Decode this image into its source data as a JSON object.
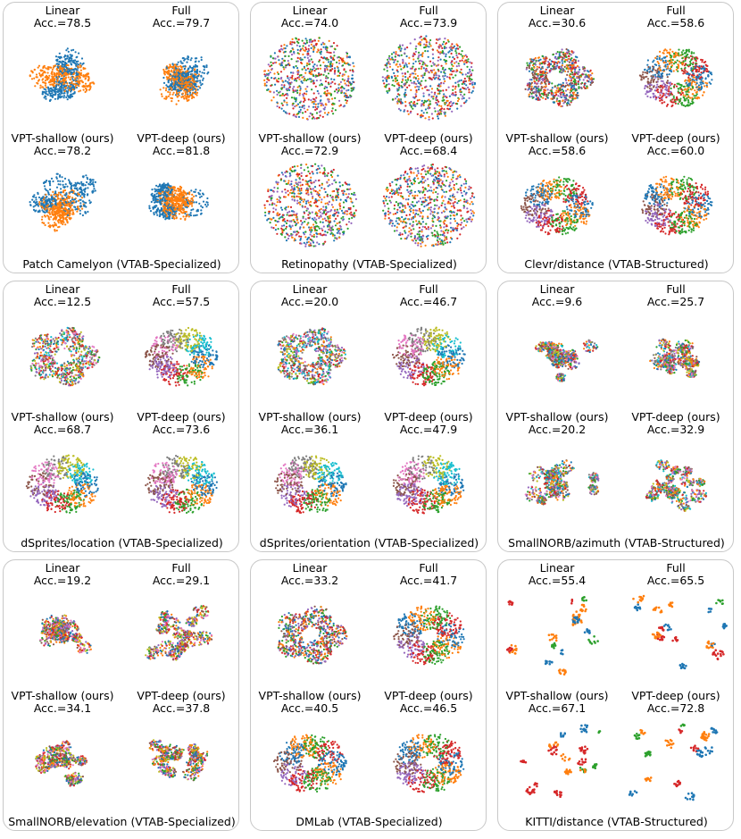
{
  "chart_data": [
    {
      "type": "scatter",
      "title": "Patch Camelyon (VTAB-Specialized)",
      "subplots": [
        {
          "method": "Linear",
          "accuracy": "Acc.=78.5"
        },
        {
          "method": "Full",
          "accuracy": "Acc.=79.7"
        },
        {
          "method": "VPT-shallow (ours)",
          "accuracy": "Acc.=78.2"
        },
        {
          "method": "VPT-deep (ours)",
          "accuracy": "Acc.=81.8"
        }
      ],
      "palette": [
        "#1f77b4",
        "#ff7f0e"
      ]
    },
    {
      "type": "scatter",
      "title": "Retinopathy (VTAB-Specialized)",
      "subplots": [
        {
          "method": "Linear",
          "accuracy": "Acc.=74.0"
        },
        {
          "method": "Full",
          "accuracy": "Acc.=73.9"
        },
        {
          "method": "VPT-shallow (ours)",
          "accuracy": "Acc.=72.9"
        },
        {
          "method": "VPT-deep (ours)",
          "accuracy": "Acc.=68.4"
        }
      ],
      "palette": [
        "#1f77b4",
        "#2ca02c",
        "#ff7f0e",
        "#d62728",
        "#9467bd"
      ]
    },
    {
      "type": "scatter",
      "title": "Clevr/distance (VTAB-Structured)",
      "subplots": [
        {
          "method": "Linear",
          "accuracy": "Acc.=30.6"
        },
        {
          "method": "Full",
          "accuracy": "Acc.=58.6"
        },
        {
          "method": "VPT-shallow (ours)",
          "accuracy": "Acc.=58.6"
        },
        {
          "method": "VPT-deep (ours)",
          "accuracy": "Acc.=60.0"
        }
      ],
      "palette": [
        "#1f77b4",
        "#ff7f0e",
        "#2ca02c",
        "#d62728",
        "#9467bd",
        "#8c564b"
      ]
    },
    {
      "type": "scatter",
      "title": "dSprites/location (VTAB-Specialized)",
      "subplots": [
        {
          "method": "Linear",
          "accuracy": "Acc.=12.5"
        },
        {
          "method": "Full",
          "accuracy": "Acc.=57.5"
        },
        {
          "method": "VPT-shallow (ours)",
          "accuracy": "Acc.=68.7"
        },
        {
          "method": "VPT-deep (ours)",
          "accuracy": "Acc.=73.6"
        }
      ],
      "palette": [
        "#1f77b4",
        "#ff7f0e",
        "#2ca02c",
        "#d62728",
        "#9467bd",
        "#8c564b",
        "#e377c2",
        "#7f7f7f",
        "#bcbd22",
        "#17becf"
      ]
    },
    {
      "type": "scatter",
      "title": "dSprites/orientation (VTAB-Specialized)",
      "subplots": [
        {
          "method": "Linear",
          "accuracy": "Acc.=20.0"
        },
        {
          "method": "Full",
          "accuracy": "Acc.=46.7"
        },
        {
          "method": "VPT-shallow (ours)",
          "accuracy": "Acc.=36.1"
        },
        {
          "method": "VPT-deep (ours)",
          "accuracy": "Acc.=47.9"
        }
      ],
      "palette": [
        "#1f77b4",
        "#ff7f0e",
        "#2ca02c",
        "#d62728",
        "#9467bd",
        "#8c564b",
        "#e377c2",
        "#7f7f7f",
        "#bcbd22",
        "#17becf"
      ]
    },
    {
      "type": "scatter",
      "title": "SmallNORB/azimuth (VTAB-Structured)",
      "subplots": [
        {
          "method": "Linear",
          "accuracy": "Acc.=9.6"
        },
        {
          "method": "Full",
          "accuracy": "Acc.=25.7"
        },
        {
          "method": "VPT-shallow (ours)",
          "accuracy": "Acc.=20.2"
        },
        {
          "method": "VPT-deep (ours)",
          "accuracy": "Acc.=32.9"
        }
      ],
      "palette": [
        "#1f77b4",
        "#ff7f0e",
        "#2ca02c",
        "#d62728",
        "#9467bd",
        "#8c564b",
        "#e377c2",
        "#7f7f7f",
        "#bcbd22",
        "#17becf"
      ]
    },
    {
      "type": "scatter",
      "title": "SmallNORB/elevation (VTAB-Specialized)",
      "subplots": [
        {
          "method": "Linear",
          "accuracy": "Acc.=19.2"
        },
        {
          "method": "Full",
          "accuracy": "Acc.=29.1"
        },
        {
          "method": "VPT-shallow (ours)",
          "accuracy": "Acc.=34.1"
        },
        {
          "method": "VPT-deep (ours)",
          "accuracy": "Acc.=37.8"
        }
      ],
      "palette": [
        "#1f77b4",
        "#ff7f0e",
        "#2ca02c",
        "#d62728",
        "#9467bd",
        "#8c564b",
        "#e377c2",
        "#bcbd22"
      ]
    },
    {
      "type": "scatter",
      "title": "DMLab (VTAB-Specialized)",
      "subplots": [
        {
          "method": "Linear",
          "accuracy": "Acc.=33.2"
        },
        {
          "method": "Full",
          "accuracy": "Acc.=41.7"
        },
        {
          "method": "VPT-shallow (ours)",
          "accuracy": "Acc.=40.5"
        },
        {
          "method": "VPT-deep (ours)",
          "accuracy": "Acc.=46.5"
        }
      ],
      "palette": [
        "#1f77b4",
        "#ff7f0e",
        "#2ca02c",
        "#d62728",
        "#9467bd",
        "#8c564b"
      ]
    },
    {
      "type": "scatter",
      "title": "KITTI/distance (VTAB-Structured)",
      "subplots": [
        {
          "method": "Linear",
          "accuracy": "Acc.=55.4"
        },
        {
          "method": "Full",
          "accuracy": "Acc.=65.5"
        },
        {
          "method": "VPT-shallow (ours)",
          "accuracy": "Acc.=67.1"
        },
        {
          "method": "VPT-deep (ours)",
          "accuracy": "Acc.=72.8"
        }
      ],
      "palette": [
        "#1f77b4",
        "#ff7f0e",
        "#2ca02c",
        "#d62728"
      ]
    }
  ]
}
